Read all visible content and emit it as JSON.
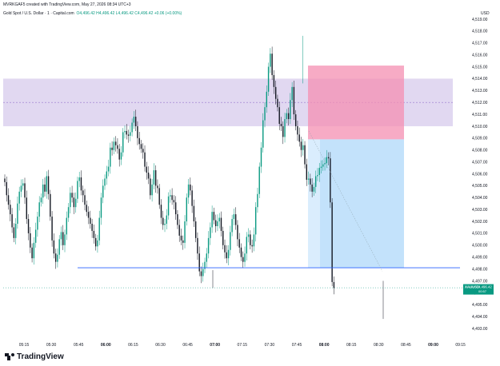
{
  "header": {
    "created_by": "MVRKGAF5 created with TradingView.com, May 27, 2026 08:34 UTC+3",
    "symbol": "Gold Spot / U.S. Dollar · 1 · Capital.com",
    "ohlc": "O4,496.42 H4,496.42 L4,496.42 C4,496.42 +0.06 (+0.00%)"
  },
  "brand": {
    "name": "TradingView"
  },
  "colors": {
    "up": "#089981",
    "down": "#131722",
    "line": "#2962ff",
    "supply_zone": "#b39ddb",
    "stop_zone": "#f48fb1",
    "target_zone": "#bbdefb"
  },
  "chart_data": {
    "type": "candlestick",
    "currency": "USD",
    "ylim": [
      4492,
      4519
    ],
    "y_ticks": [
      "4,519.00",
      "4,518.00",
      "4,517.00",
      "4,516.00",
      "4,515.00",
      "4,514.00",
      "4,513.00",
      "4,512.00",
      "4,511.00",
      "4,510.00",
      "4,509.00",
      "4,508.00",
      "4,507.00",
      "4,506.00",
      "4,505.00",
      "4,504.00",
      "4,503.00",
      "4,502.00",
      "4,501.00",
      "4,500.00",
      "4,499.00",
      "4,498.00",
      "4,497.00",
      "4,496.00",
      "4,495.00",
      "4,494.00",
      "4,493.00"
    ],
    "x_ticks": [
      {
        "label": "05:15",
        "bold": false
      },
      {
        "label": "05:30",
        "bold": false
      },
      {
        "label": "05:45",
        "bold": false
      },
      {
        "label": "06:00",
        "bold": true
      },
      {
        "label": "06:15",
        "bold": false
      },
      {
        "label": "06:30",
        "bold": false
      },
      {
        "label": "06:45",
        "bold": false
      },
      {
        "label": "07:00",
        "bold": true
      },
      {
        "label": "07:15",
        "bold": false
      },
      {
        "label": "07:30",
        "bold": false
      },
      {
        "label": "07:45",
        "bold": false
      },
      {
        "label": "08:00",
        "bold": true
      },
      {
        "label": "08:15",
        "bold": false
      },
      {
        "label": "08:30",
        "bold": false
      },
      {
        "label": "08:45",
        "bold": false
      },
      {
        "label": "09:00",
        "bold": true
      },
      {
        "label": "09:15",
        "bold": false
      }
    ],
    "price_label": {
      "value": "4,496.42",
      "symbol": "XAUUSD",
      "sub": "00:57",
      "color": "#089981"
    },
    "close_series": [
      4505.3,
      4504.2,
      4503.4,
      4502.6,
      4501.5,
      4500.6,
      4501.8,
      4503.5,
      4504.5,
      4505.0,
      4505.2,
      4504.0,
      4502.2,
      4501.0,
      4499.8,
      4498.9,
      4500.2,
      4501.3,
      4502.4,
      4503.6,
      4504.0,
      4505.1,
      4504.5,
      4505.8,
      4504.3,
      4502.4,
      4500.4,
      4499.3,
      4498.6,
      4499.2,
      4500.5,
      4501.1,
      4500.0,
      4500.9,
      4502.3,
      4503.2,
      4504.4,
      4504.0,
      4503.2,
      4503.9,
      4505.4,
      4505.7,
      4504.6,
      4504.2,
      4503.4,
      4502.8,
      4502.3,
      4501.8,
      4501.2,
      4500.6,
      4499.9,
      4500.4,
      4502.3,
      4504.0,
      4505.0,
      4505.6,
      4506.2,
      4506.6,
      4508.2,
      4508.0,
      4508.7,
      4508.4,
      4508.1,
      4507.2,
      4507.8,
      4509.5,
      4509.6,
      4509.3,
      4509.2,
      4509.5,
      4510.3,
      4510.8,
      4510.0,
      4509.0,
      4508.5,
      4508.1,
      4507.8,
      4506.6,
      4506.1,
      4505.6,
      4504.2,
      4505.1,
      4506.3,
      4505.0,
      4504.8,
      4503.4,
      4502.3,
      4501.7,
      4501.8,
      4502.5,
      4504.1,
      4504.2,
      4503.8,
      4503.6,
      4502.6,
      4501.7,
      4500.8,
      4500.4,
      4500.2,
      4502.0,
      4504.0,
      4505.1,
      4504.6,
      4503.3,
      4502.0,
      4500.6,
      4499.3,
      4497.8,
      4497.4,
      4498.0,
      4498.6,
      4499.3,
      4500.6,
      4501.5,
      4502.8,
      4502.1,
      4501.6,
      4502.0,
      4502.3,
      4501.2,
      4500.0,
      4499.4,
      4498.9,
      4499.6,
      4501.1,
      4502.2,
      4502.6,
      4501.7,
      4500.5,
      4499.8,
      4499.0,
      4498.6,
      4499.3,
      4500.7,
      4500.9,
      4500.0,
      4499.9,
      4500.9,
      4503.2,
      4504.3,
      4506.6,
      4508.2,
      4510.5,
      4511.6,
      4512.9,
      4515.0,
      4516.1,
      4514.3,
      4513.3,
      4512.3,
      4511.6,
      4510.2,
      4510.0,
      4509.1,
      4510.6,
      4511.1,
      4510.6,
      4512.2,
      4513.3,
      4511.0,
      4510.0,
      4509.3,
      4508.7,
      4508.0,
      4508.4,
      4506.8,
      4505.5,
      4505.6,
      4505.1,
      4504.5,
      4504.9,
      4505.8,
      4505.9,
      4506.5,
      4506.6,
      4506.8,
      4506.9,
      4507.4,
      4507.3,
      4503.6,
      4496.9,
      4496.4
    ]
  }
}
